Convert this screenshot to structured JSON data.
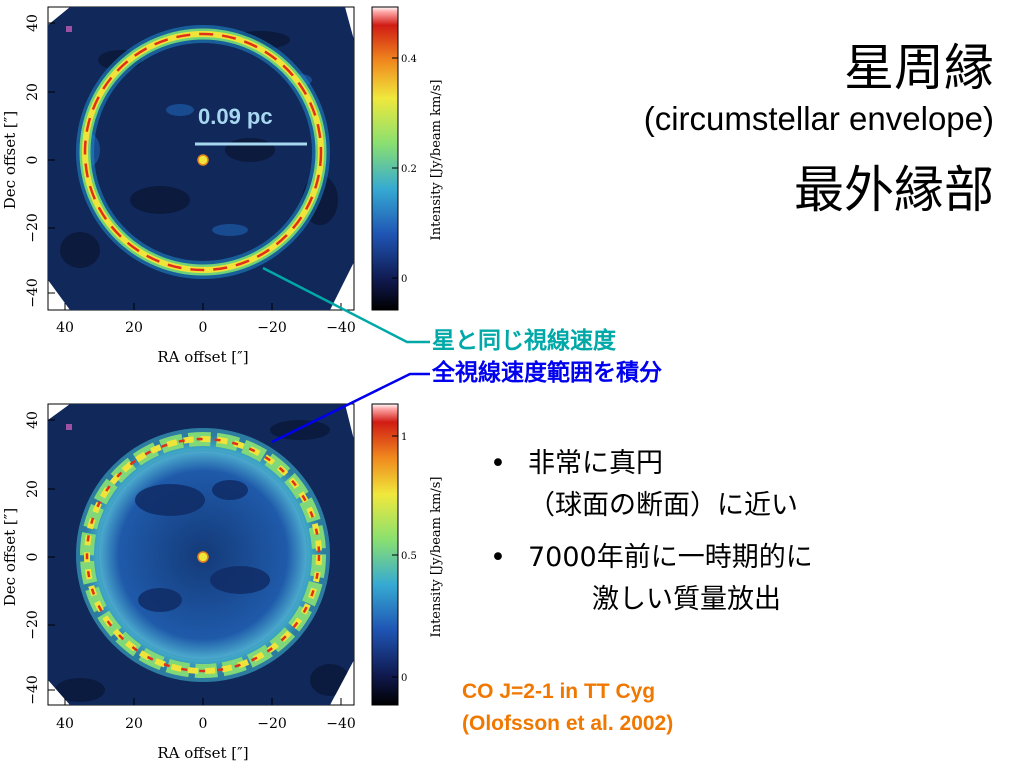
{
  "title": {
    "line1": "星周縁",
    "line2": "(circumstellar envelope)",
    "line3": "最外縁部"
  },
  "scale_bar": {
    "label": "0.09 pc"
  },
  "top_map": {
    "xlabel": "RA offset   [″]",
    "ylabel": "Dec offset   [″]",
    "x_ticks": [
      "40",
      "20",
      "0",
      "−20",
      "−40"
    ],
    "y_ticks": [
      "40",
      "20",
      "0",
      "−20",
      "−40"
    ],
    "colorbar_label": "Intensity [Jy/beam km/s]",
    "colorbar_ticks": [
      "0.4",
      "0.2",
      "0"
    ]
  },
  "bottom_map": {
    "xlabel": "RA offset   [″]",
    "ylabel": "Dec offset   [″]",
    "x_ticks": [
      "40",
      "20",
      "0",
      "−20",
      "−40"
    ],
    "y_ticks": [
      "40",
      "20",
      "0",
      "−20",
      "−40"
    ],
    "colorbar_label": "Intensity [Jy/beam km/s]",
    "colorbar_ticks": [
      "1",
      "0.5",
      "0"
    ]
  },
  "annotations": {
    "label1": "星と同じ視線速度",
    "label2": "全視線速度範囲を積分",
    "label1_color": "#00a8a8",
    "label2_color": "#0000ee"
  },
  "bullets": [
    {
      "line1": "非常に真円",
      "line2": "（球面の断面）に近い"
    },
    {
      "line1": "7000年前に一時期的に",
      "line2": "激しい質量放出"
    }
  ],
  "credit": {
    "line1": "CO J=2-1 in TT Cyg",
    "line2": "(Olofsson et al. 2002)"
  }
}
